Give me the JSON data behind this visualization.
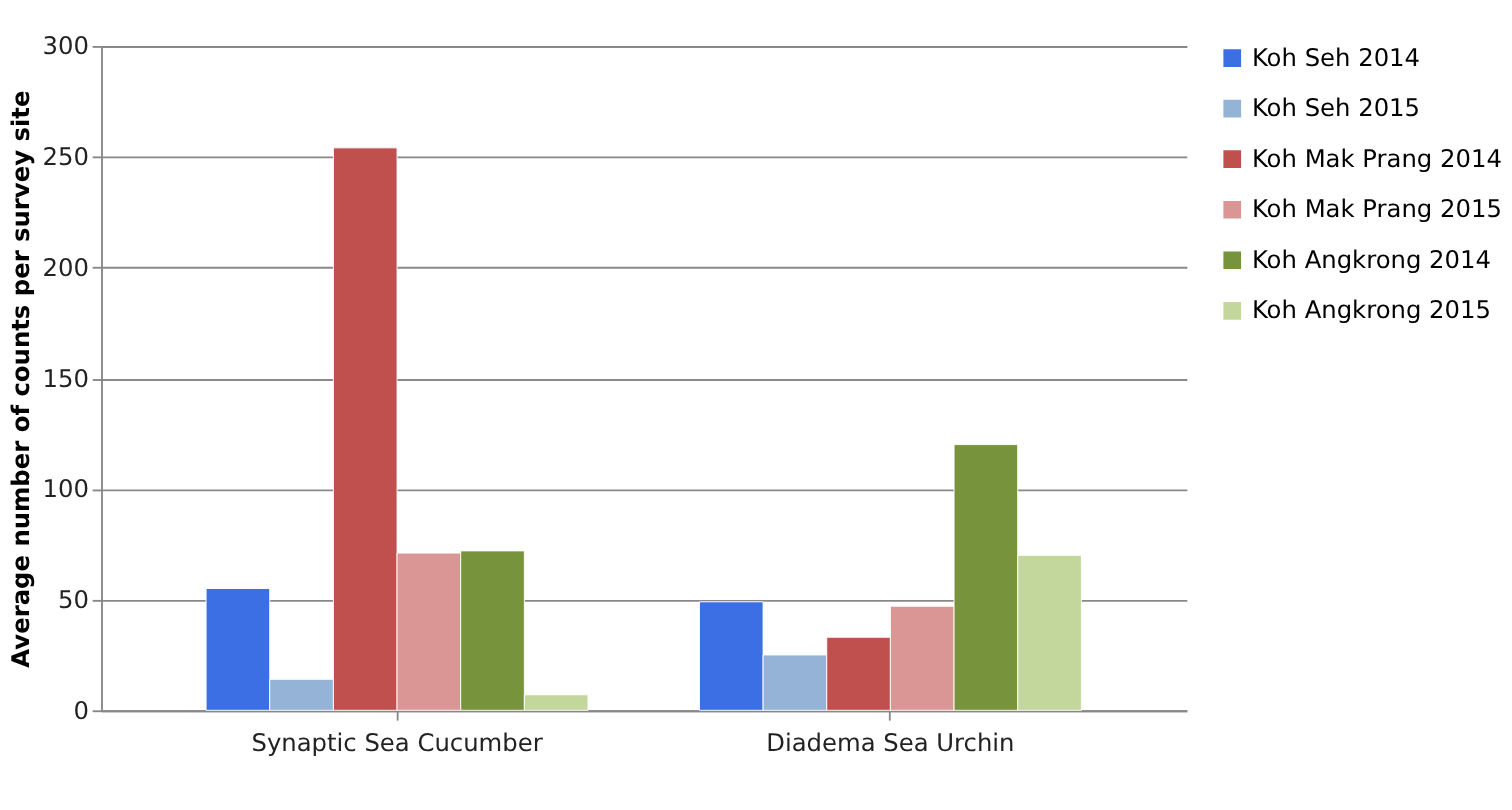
{
  "chart_data": {
    "type": "bar",
    "ylabel": "Average number of counts per survey site",
    "categories": [
      "Synaptic Sea Cucumber",
      "Diadema Sea Urchin"
    ],
    "series": [
      {
        "name": "Koh Seh 2014",
        "color": "#3b6fe3",
        "values": [
          55,
          49
        ]
      },
      {
        "name": "Koh Seh 2015",
        "color": "#95b3d7",
        "values": [
          14,
          25
        ]
      },
      {
        "name": "Koh Mak Prang 2014",
        "color": "#c0504d",
        "values": [
          254,
          33
        ]
      },
      {
        "name": "Koh Mak Prang 2015",
        "color": "#d99694",
        "values": [
          71,
          47
        ]
      },
      {
        "name": "Koh Angkrong 2014",
        "color": "#77933c",
        "values": [
          72,
          120
        ]
      },
      {
        "name": "Koh Angkrong 2015",
        "color": "#c3d69b",
        "values": [
          7,
          70
        ]
      }
    ],
    "ylim": [
      0,
      300
    ],
    "yticks": [
      0,
      50,
      100,
      150,
      200,
      250,
      300
    ],
    "grid": "y",
    "legend": "right"
  }
}
